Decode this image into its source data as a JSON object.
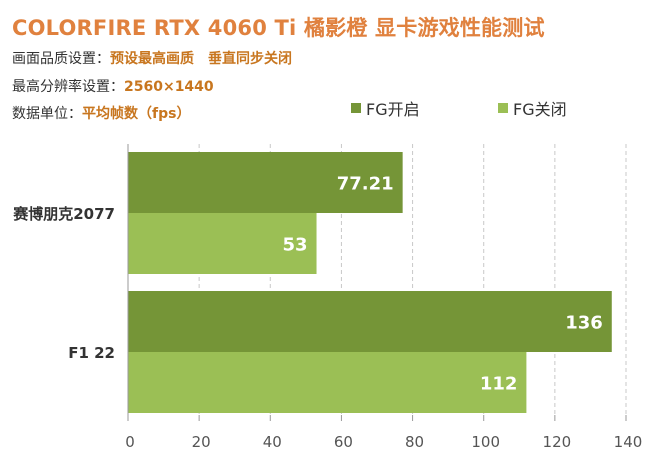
{
  "header": {
    "title": "COLORFIRE RTX 4060 Ti 橘影橙 显卡游戏性能测试",
    "quality_label": "画面品质设置：",
    "quality_value": "预设最高画质",
    "vsync_value": "垂直同步关闭",
    "resolution_label": "最高分辨率设置：",
    "resolution_value": "2560×1440",
    "unit_label": "数据单位：",
    "unit_value": "平均帧数（fps）"
  },
  "colors": {
    "fg_on": "#759537",
    "fg_off": "#9bbf55",
    "title": "#e0813e",
    "accent": "#c8761f"
  },
  "chart_data": {
    "type": "bar",
    "orientation": "horizontal",
    "categories": [
      "赛博朋克2077",
      "F1 22"
    ],
    "series": [
      {
        "name": "FG开启",
        "values": [
          77.21,
          136
        ],
        "labels": [
          "77.21",
          "136"
        ]
      },
      {
        "name": "FG关闭",
        "values": [
          53,
          112
        ],
        "labels": [
          "53",
          "112"
        ]
      }
    ],
    "xlim": [
      0,
      140
    ],
    "xticks": [
      0,
      20,
      40,
      60,
      80,
      100,
      120,
      140
    ],
    "xtick_labels": [
      "0",
      "20",
      "40",
      "60",
      "80",
      "100",
      "120",
      "140"
    ],
    "grid": true,
    "legend": "top-right"
  }
}
